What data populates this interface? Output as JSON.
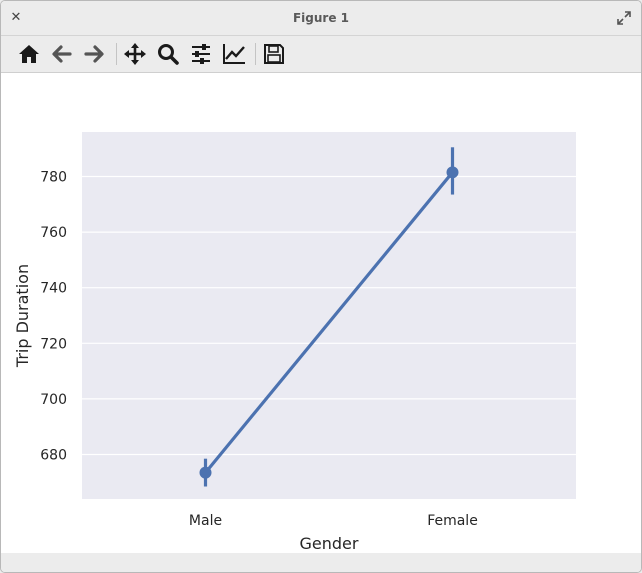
{
  "window": {
    "title": "Figure 1"
  },
  "toolbar": {
    "buttons": [
      {
        "name": "home-button",
        "icon": "home-icon"
      },
      {
        "name": "back-button",
        "icon": "arrow-left-icon"
      },
      {
        "name": "forward-button",
        "icon": "arrow-right-icon"
      },
      {
        "name": "pan-button",
        "icon": "move-icon"
      },
      {
        "name": "zoom-button",
        "icon": "search-icon"
      },
      {
        "name": "configure-subplots-button",
        "icon": "sliders-icon"
      },
      {
        "name": "edit-axes-button",
        "icon": "line-chart-icon"
      },
      {
        "name": "save-button",
        "icon": "floppy-disk-icon"
      }
    ]
  },
  "colors": {
    "axes_background": "#eaeaf2",
    "series": "#4c72b0",
    "grid": "#ffffff"
  },
  "chart_data": {
    "type": "line",
    "categories": [
      "Male",
      "Female"
    ],
    "series": [
      {
        "values": [
          673.5,
          781.5
        ],
        "ci": [
          [
            668.5,
            678.5
          ],
          [
            773.5,
            790.5
          ]
        ]
      }
    ],
    "xlabel": "Gender",
    "ylabel": "Trip Duration",
    "ylim": [
      664,
      796
    ],
    "yticks": [
      680,
      700,
      720,
      740,
      760,
      780
    ],
    "grid": true
  }
}
